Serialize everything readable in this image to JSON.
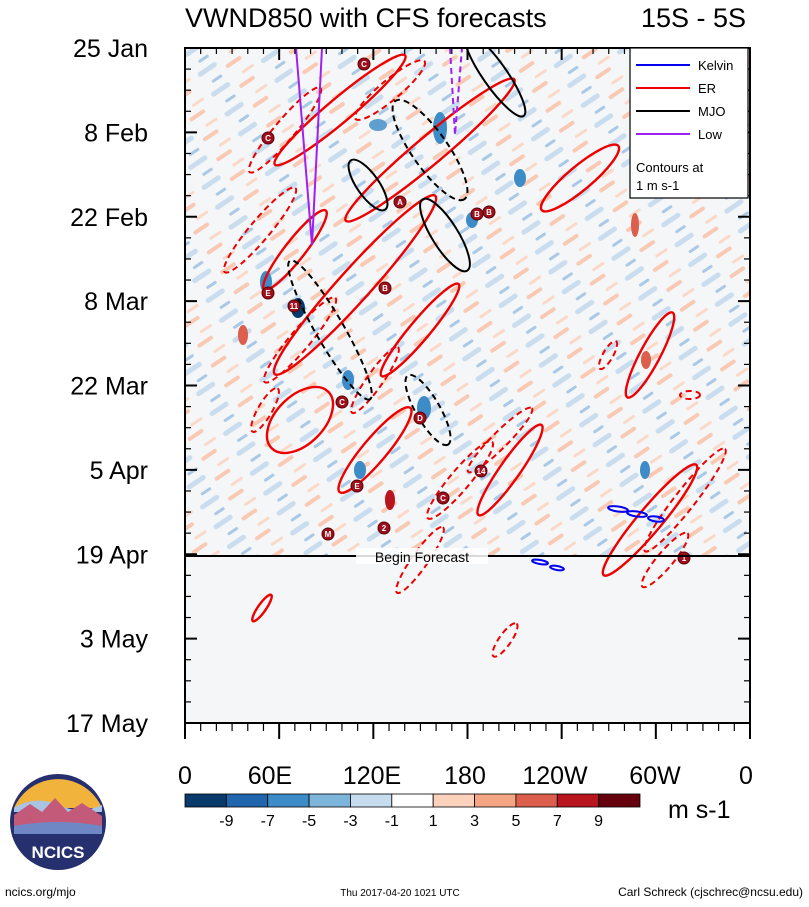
{
  "header": {
    "title": "VWND850 with CFS forecasts",
    "region": "15S - 5S"
  },
  "chart_data": {
    "type": "heatmap",
    "title": "VWND850 with CFS forecasts",
    "subtitle": "15S - 5S",
    "x_ticks": [
      "0",
      "60E",
      "120E",
      "180",
      "120W",
      "60W",
      "0"
    ],
    "y_ticks": [
      "25 Jan",
      "8 Feb",
      "22 Feb",
      "8 Mar",
      "22 Mar",
      "5 Apr",
      "19 Apr",
      "3 May",
      "17 May"
    ],
    "xlim": [
      0,
      360
    ],
    "time_range": [
      "25 Jan",
      "17 May"
    ],
    "forecast_start": "19 Apr",
    "forecast_label": "Begin Forecast",
    "legend": {
      "entries": [
        {
          "name": "Kelvin",
          "color": "#0000ee",
          "dashed": false
        },
        {
          "name": "ER",
          "color": "#ee0000",
          "dashed": false
        },
        {
          "name": "MJO",
          "color": "#000000",
          "dashed": false
        },
        {
          "name": "Low",
          "color": "#a020f0",
          "dashed": false
        }
      ],
      "note_line1": "Contours at",
      "note_line2": "1 m s-1",
      "placement": "top-right"
    },
    "colorbar": {
      "labels": [
        "-9",
        "-7",
        "-5",
        "-3",
        "-1",
        "1",
        "3",
        "5",
        "7",
        "9"
      ],
      "colors": [
        "#083a6b",
        "#1f66ae",
        "#3d8bc7",
        "#7eb5da",
        "#c6dcef",
        "#ffffff",
        "#fdd2bd",
        "#f4a684",
        "#dc5f4d",
        "#b8151f",
        "#67000d"
      ],
      "unit": "m s-1"
    },
    "tc_markers": [
      "C",
      "C",
      "A",
      "B",
      "B",
      "E",
      "11",
      "B",
      "C",
      "D",
      "14",
      "E",
      "C",
      "2",
      "M",
      "1"
    ]
  },
  "logo": {
    "text": "NCICS"
  },
  "footer": {
    "url": "ncics.org/mjo",
    "timestamp": "Thu 2017-04-20 1021 UTC",
    "author": "Carl Schreck (cjschrec@ncsu.edu)"
  }
}
